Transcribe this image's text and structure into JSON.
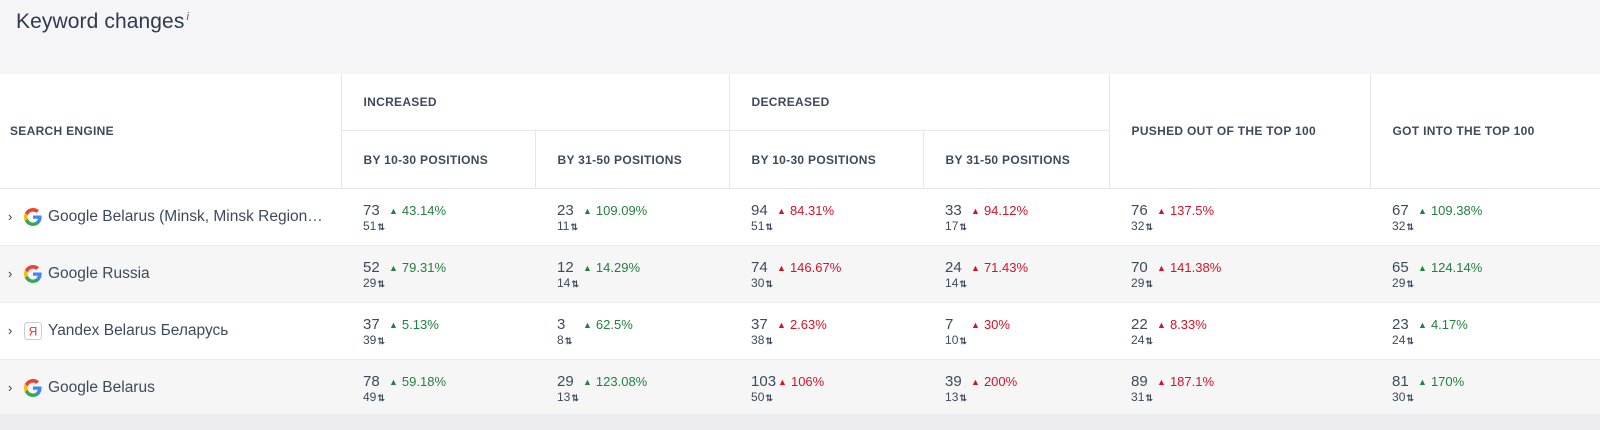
{
  "title": "Keyword changes",
  "info_mark": "i",
  "headers": {
    "engine": "SEARCH ENGINE",
    "increased": "INCREASED",
    "decreased": "DECREASED",
    "pushed": "PUSHED OUT OF THE TOP 100",
    "got": "GOT INTO THE TOP 100",
    "by_10_30": "BY 10-30 POSITIONS",
    "by_31_50": "BY 31-50 POSITIONS"
  },
  "colors": {
    "up": "#23803e",
    "down": "#d4132a"
  },
  "rows": [
    {
      "engine": "Google Belarus (Minsk, Minsk Region…",
      "icon": "google-icon",
      "cells": [
        {
          "main": "73",
          "prev": "51",
          "change": "43.14%",
          "dir": "up"
        },
        {
          "main": "23",
          "prev": "11",
          "change": "109.09%",
          "dir": "up"
        },
        {
          "main": "94",
          "prev": "51",
          "change": "84.31%",
          "dir": "down"
        },
        {
          "main": "33",
          "prev": "17",
          "change": "94.12%",
          "dir": "down"
        },
        {
          "main": "76",
          "prev": "32",
          "change": "137.5%",
          "dir": "down"
        },
        {
          "main": "67",
          "prev": "32",
          "change": "109.38%",
          "dir": "up"
        }
      ]
    },
    {
      "engine": "Google Russia",
      "icon": "google-icon",
      "cells": [
        {
          "main": "52",
          "prev": "29",
          "change": "79.31%",
          "dir": "up"
        },
        {
          "main": "12",
          "prev": "14",
          "change": "14.29%",
          "dir": "up"
        },
        {
          "main": "74",
          "prev": "30",
          "change": "146.67%",
          "dir": "down"
        },
        {
          "main": "24",
          "prev": "14",
          "change": "71.43%",
          "dir": "down"
        },
        {
          "main": "70",
          "prev": "29",
          "change": "141.38%",
          "dir": "down"
        },
        {
          "main": "65",
          "prev": "29",
          "change": "124.14%",
          "dir": "up"
        }
      ]
    },
    {
      "engine": "Yandex Belarus Беларусь",
      "icon": "yandex-icon",
      "cells": [
        {
          "main": "37",
          "prev": "39",
          "change": "5.13%",
          "dir": "up"
        },
        {
          "main": "3",
          "prev": "8",
          "change": "62.5%",
          "dir": "up"
        },
        {
          "main": "37",
          "prev": "38",
          "change": "2.63%",
          "dir": "down"
        },
        {
          "main": "7",
          "prev": "10",
          "change": "30%",
          "dir": "down"
        },
        {
          "main": "22",
          "prev": "24",
          "change": "8.33%",
          "dir": "down"
        },
        {
          "main": "23",
          "prev": "24",
          "change": "4.17%",
          "dir": "up"
        }
      ]
    },
    {
      "engine": "Google Belarus",
      "icon": "google-icon",
      "cells": [
        {
          "main": "78",
          "prev": "49",
          "change": "59.18%",
          "dir": "up"
        },
        {
          "main": "29",
          "prev": "13",
          "change": "123.08%",
          "dir": "up"
        },
        {
          "main": "103",
          "prev": "50",
          "change": "106%",
          "dir": "down"
        },
        {
          "main": "39",
          "prev": "13",
          "change": "200%",
          "dir": "down"
        },
        {
          "main": "89",
          "prev": "31",
          "change": "187.1%",
          "dir": "down"
        },
        {
          "main": "81",
          "prev": "30",
          "change": "170%",
          "dir": "up"
        }
      ]
    }
  ]
}
